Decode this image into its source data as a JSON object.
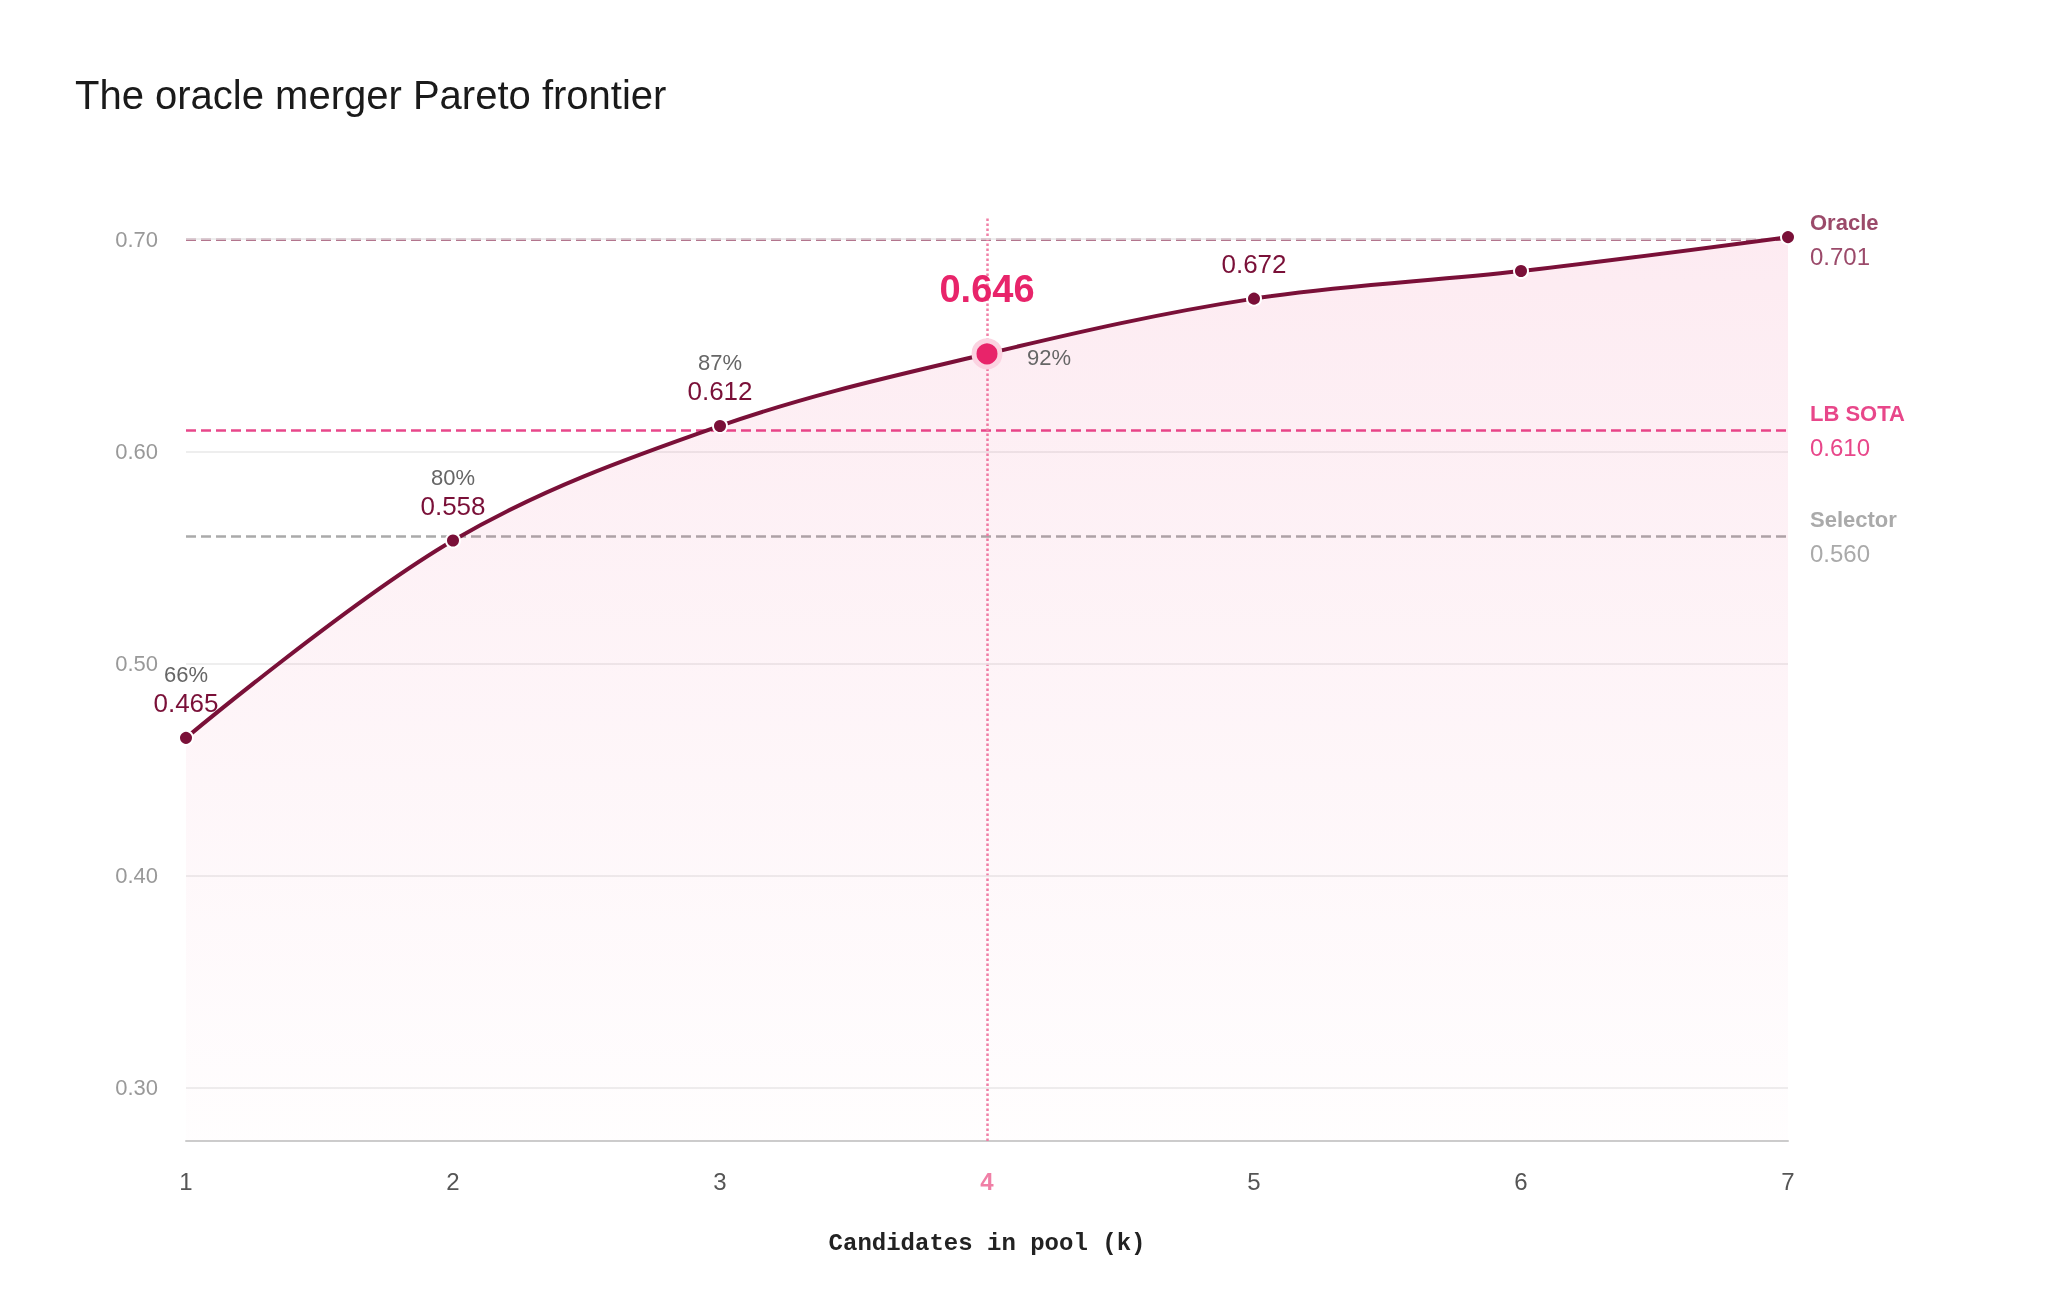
{
  "chart_data": {
    "type": "area",
    "title": "The oracle merger Pareto frontier",
    "xlabel": "Candidates in pool (k)",
    "x": [
      1,
      2,
      3,
      4,
      5,
      6,
      7
    ],
    "xlim": [
      1,
      7
    ],
    "xticks": [
      1,
      2,
      3,
      4,
      5,
      6,
      7
    ],
    "ylim": [
      0.275,
      0.71
    ],
    "yticks": [
      {
        "value": 0.3,
        "label": "0.30"
      },
      {
        "value": 0.4,
        "label": "0.40"
      },
      {
        "value": 0.5,
        "label": "0.50"
      },
      {
        "value": 0.6,
        "label": "0.60"
      },
      {
        "value": 0.7,
        "label": "0.70"
      }
    ],
    "series": [
      {
        "color": "#7a1038",
        "values": [
          0.465,
          0.558,
          0.612,
          0.646,
          0.672,
          0.685,
          0.701
        ],
        "colors": [
          "#7a1038",
          "#7a1038",
          "#7a1038",
          "#e8246a",
          "#7a1038",
          "#7a1038",
          "#7a1038"
        ],
        "value_labels": [
          "0.465",
          "0.558",
          "0.612",
          "0.646",
          "0.672",
          null,
          null
        ]
      }
    ],
    "annotations": [
      {
        "text": "66%",
        "x": 1,
        "y": 0.465
      },
      {
        "text": "80%",
        "x": 2,
        "y": 0.558
      },
      {
        "text": "87%",
        "x": 3,
        "y": 0.612
      },
      {
        "text": "92%",
        "x": 4,
        "y": 0.646
      }
    ],
    "ref_lines": [
      {
        "axis": "y",
        "value": 0.701,
        "label": "Oracle\n0.701",
        "color": "#9b4a6a",
        "line_style": "dashed"
      },
      {
        "axis": "y",
        "value": 0.61,
        "label": "LB SOTA\n0.610",
        "color": "#e8478a",
        "line_style": "dashed"
      },
      {
        "axis": "y",
        "value": 0.56,
        "label": "Selector\n0.560",
        "color": "#aaaaaa",
        "line_style": "dashed"
      },
      {
        "axis": "x",
        "value": 4,
        "color": "#f07fa6",
        "line_style": "dotted"
      }
    ],
    "grid": "y",
    "marker": "circle",
    "line_style": "solid"
  }
}
